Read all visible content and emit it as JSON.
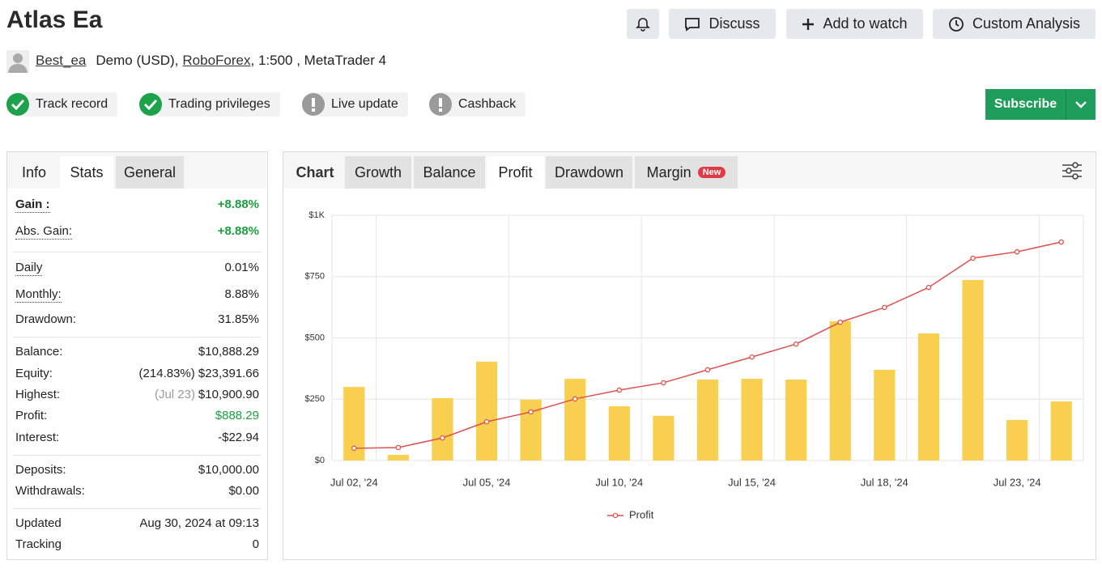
{
  "header": {
    "title": "Atlas Ea",
    "buttons": [
      "Discuss",
      "Add to watch",
      "Custom Analysis"
    ]
  },
  "account": {
    "user": "Best_ea",
    "type": "Demo (USD),",
    "broker": "RoboForex",
    "details": ", 1:500 , MetaTrader 4"
  },
  "badges": [
    "Track record",
    "Trading privileges",
    "Live update",
    "Cashback"
  ],
  "subscribe": "Subscribe",
  "stats": {
    "tabs": [
      "Info",
      "Stats",
      "General"
    ],
    "groups": [
      [
        {
          "label": "Gain :",
          "value": "+8.88%"
        },
        {
          "label": "Abs. Gain:",
          "value": "+8.88%"
        }
      ],
      [
        {
          "label": "Daily",
          "value": "0.01%"
        },
        {
          "label": "Monthly:",
          "value": "8.88%"
        },
        {
          "label": "Drawdown:",
          "value": "31.85%"
        }
      ],
      [
        {
          "label": "Balance:",
          "value": "$10,888.29"
        },
        {
          "label": "Equity:",
          "value": "(214.83%) $23,391.66"
        },
        {
          "label": "Highest:",
          "note": "(Jul 23)",
          "value": "$10,900.90"
        },
        {
          "label": "Profit:",
          "value": "$888.29"
        },
        {
          "label": "Interest:",
          "value": "-$22.94"
        }
      ],
      [
        {
          "label": "Deposits:",
          "value": "$10,000.00"
        },
        {
          "label": "Withdrawals:",
          "value": "$0.00"
        }
      ],
      [
        {
          "label": "Updated",
          "value": "Aug 30, 2024 at 09:13"
        },
        {
          "label": "Tracking",
          "value": "0"
        }
      ]
    ]
  },
  "chart_tabs": {
    "label": "Chart",
    "tabs": [
      "Growth",
      "Balance",
      "Profit",
      "Drawdown",
      "Margin"
    ],
    "new_badge": "New"
  },
  "chart_data": {
    "type": "bar",
    "categories": [
      "Jul 02, '24",
      null,
      null,
      "Jul 05, '24",
      null,
      null,
      "Jul 10, '24",
      null,
      null,
      "Jul 15, '24",
      null,
      null,
      "Jul 18, '24",
      null,
      null,
      "Jul 23, '24",
      null
    ],
    "series": [
      {
        "type": "bar",
        "color": "#f9cf50",
        "values": [
          300,
          23,
          254,
          403,
          248,
          333,
          221,
          182,
          330,
          333,
          330,
          568,
          370,
          518,
          736,
          165,
          241
        ]
      },
      {
        "type": "line",
        "name": "Profit",
        "color": "#e0504d",
        "values": [
          50,
          53,
          92,
          158,
          198,
          251,
          287,
          317,
          370,
          422,
          475,
          564,
          624,
          706,
          825,
          851,
          891
        ]
      }
    ],
    "ylim": [
      0,
      1000
    ],
    "yticks": [
      {
        "value": 0,
        "label": "$0"
      },
      {
        "value": 250,
        "label": "$250"
      },
      {
        "value": 500,
        "label": "$500"
      },
      {
        "value": 750,
        "label": "$750"
      },
      {
        "value": 1000,
        "label": "$1K"
      }
    ],
    "grid": true,
    "legend": "bottom"
  }
}
